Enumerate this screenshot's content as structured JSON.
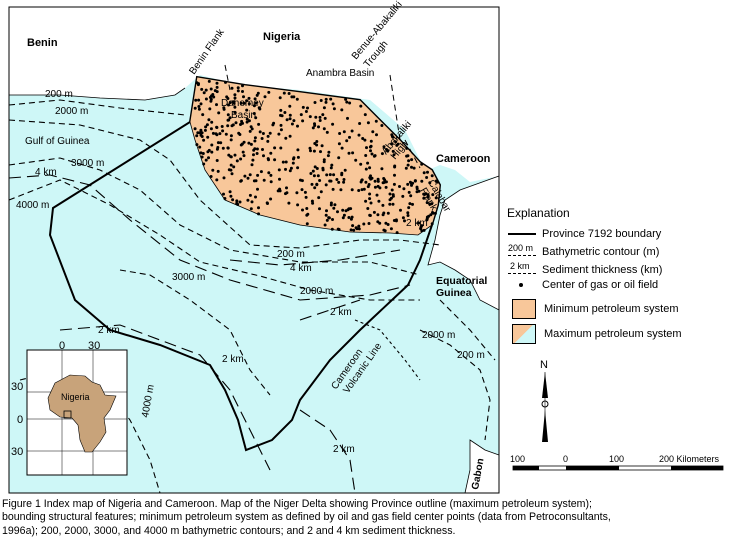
{
  "map": {
    "countries": {
      "benin": "Benin",
      "nigeria": "Nigeria",
      "cameroon": "Cameroon",
      "equatorial_guinea_1": "Equatorial",
      "equatorial_guinea_2": "Guinea",
      "gabon": "Gabon"
    },
    "features": {
      "benin_flank": "Benin Flank",
      "benue_trough_1": "Benue-Abakaliki",
      "benue_trough_2": "Trough",
      "anambra_basin": "Anambra Basin",
      "dahomey_basin_1": "Dahomey",
      "dahomey_basin_2": "Basin",
      "gulf_of_guinea": "Gulf of Guinea",
      "abakaliki_high_1": "Abakaliki",
      "abakaliki_high_2": "High",
      "calabar_flank_1": "Calabar",
      "calabar_flank_2": "Flank",
      "cameroon_volcanic_line_1": "Cameroon",
      "cameroon_volcanic_line_2": "Volcanic Line"
    },
    "contour_labels": {
      "c200_nw": "200 m",
      "c2000_nw": "2000 m",
      "c3000_nw": "3000 m",
      "c4km_w": "4 km",
      "c4000_w": "4000 m",
      "c2km_delta": "2 km",
      "c200_s": "200 m",
      "c4km_s": "4 km",
      "c3000_s": "3000 m",
      "c2000_s": "2000 m",
      "c2km_mid": "2 km",
      "c2km_west": "2 km",
      "c2km_center": "2 km",
      "c4000_sw": "4000 m",
      "c2km_bottom": "2 km",
      "c2000_e": "2000 m",
      "c200_e": "200 m"
    },
    "inset": {
      "country": "Nigeria",
      "top_0": "0",
      "top_30": "30",
      "left_30_top": "30",
      "left_0": "0",
      "left_30_bottom": "30"
    },
    "north": "N",
    "scale": {
      "labels": [
        "100",
        "0",
        "100",
        "200 Kilometers"
      ]
    },
    "colors": {
      "ocean": "#cef7f7",
      "min_system": "#f8c79a",
      "max_system": "#cef7f7",
      "land": "#ffffff"
    }
  },
  "legend": {
    "title": "Explanation",
    "boundary": "Province 7192 boundary",
    "bathymetric_sym": "200 m",
    "bathymetric": "Bathymetric contour (m)",
    "sediment_sym": "2 km",
    "sediment": "Sediment thickness (km)",
    "field": "Center of gas or oil field",
    "min_system": "Minimum petroleum system",
    "max_system": "Maximum petroleum system"
  },
  "caption": {
    "line1": "Figure 1  Index map of Nigeria and Cameroon.  Map of the Niger Delta showing Province outline (maximum petroleum system);",
    "line2": "bounding structural features; minimum petroleum system as defined by oil and gas field center points (data from Petroconsultants,",
    "line3": "1996a); 200, 2000, 3000, and 4000 m bathymetric contours; and 2 and 4 km sediment thickness."
  }
}
